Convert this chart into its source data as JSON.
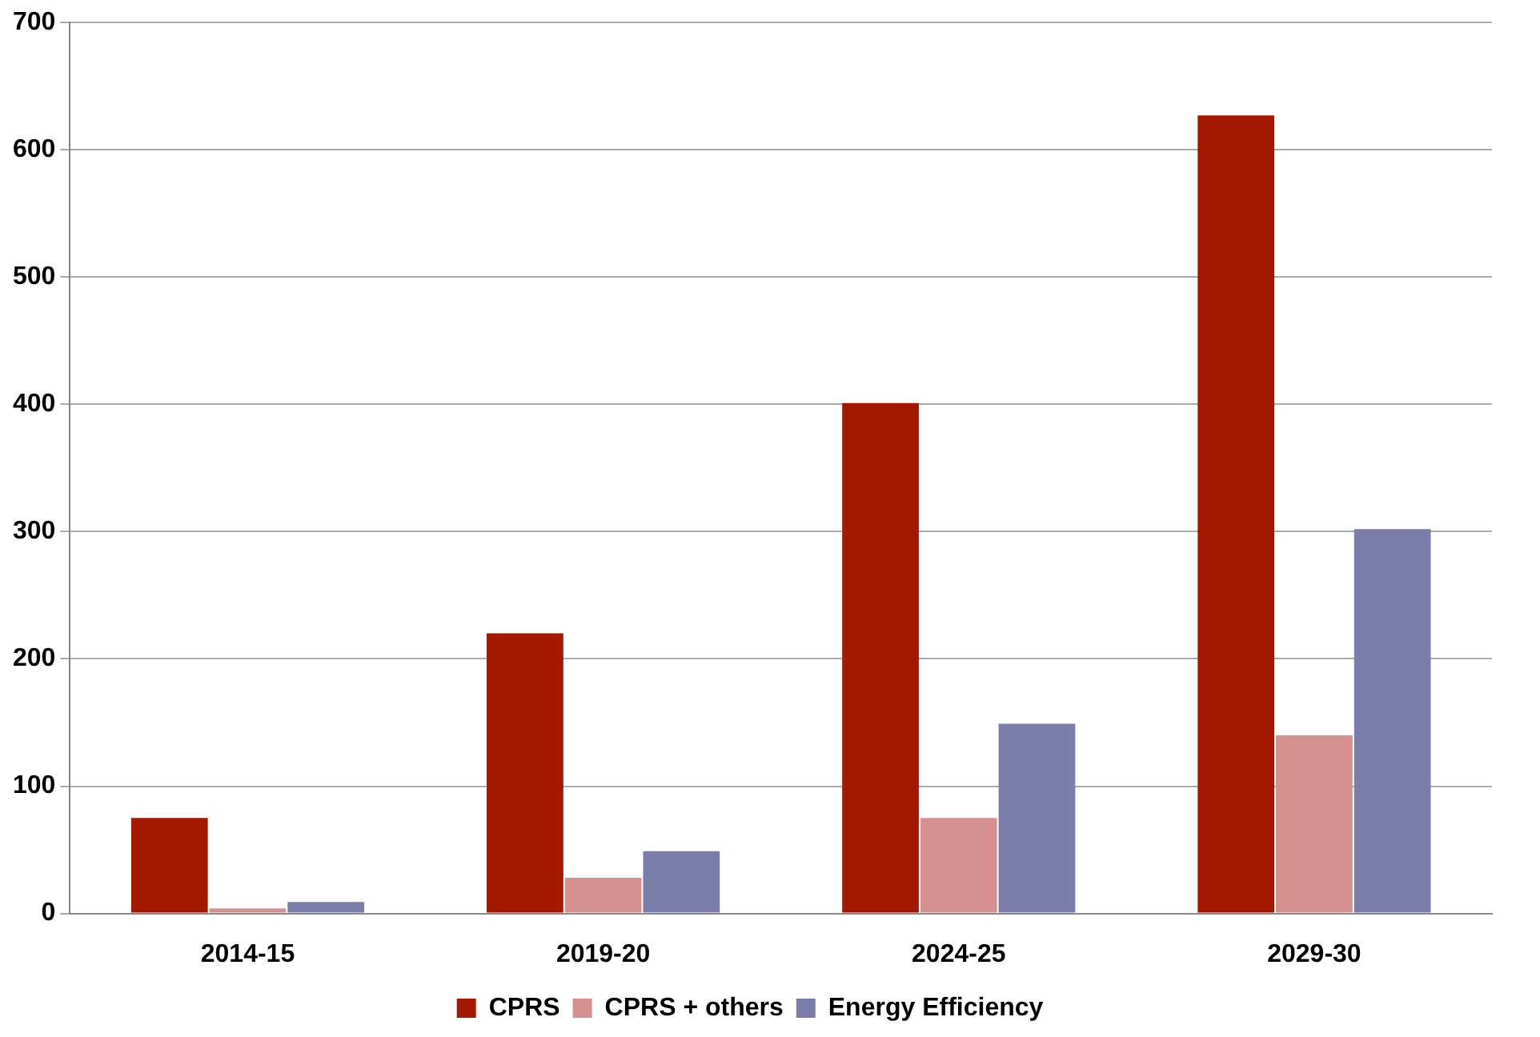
{
  "chart_data": {
    "type": "bar",
    "categories": [
      "2014-15",
      "2019-20",
      "2024-25",
      "2029-30"
    ],
    "series": [
      {
        "name": "CPRS",
        "color": "#a31900",
        "values": [
          75,
          220,
          401,
          627
        ]
      },
      {
        "name": "CPRS + others",
        "color": "#d4918f",
        "values": [
          4,
          28,
          75,
          140
        ]
      },
      {
        "name": "Energy Efficiency",
        "color": "#7b7eab",
        "values": [
          9,
          49,
          149,
          302
        ]
      }
    ],
    "ylim": [
      0,
      700
    ],
    "yticks": [
      0,
      100,
      200,
      300,
      400,
      500,
      600,
      700
    ],
    "grid": "y",
    "legend": "bottom"
  }
}
